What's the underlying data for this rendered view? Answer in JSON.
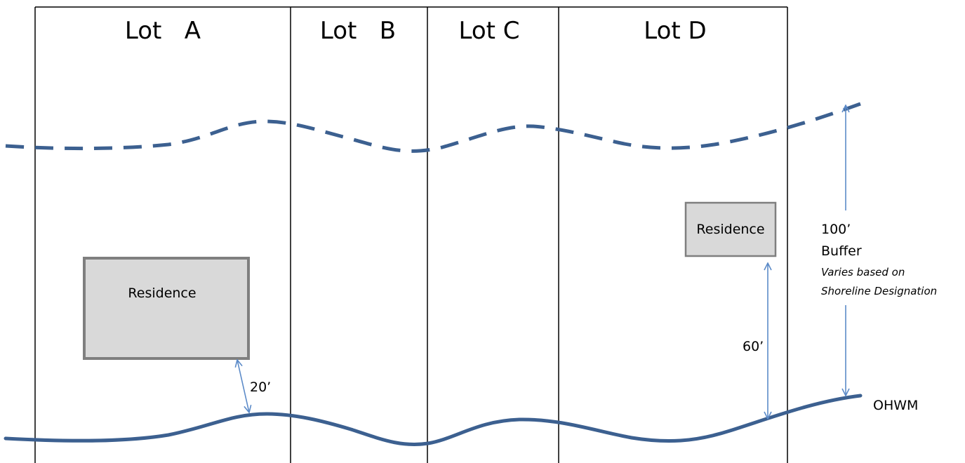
{
  "lots": [
    {
      "label": "Lot   A"
    },
    {
      "label": "Lot   B"
    },
    {
      "label": "Lot C"
    },
    {
      "label": "Lot D"
    }
  ],
  "residences": [
    {
      "label": "Residence"
    },
    {
      "label": "Residence"
    }
  ],
  "dimensions": {
    "setback_lot_a": "20’",
    "setback_lot_d": "60’",
    "buffer_distance": "100’",
    "buffer_label": "Buffer",
    "buffer_note_line1": "Varies based on",
    "buffer_note_line2": "Shoreline Designation"
  },
  "shoreline_label": "OHWM",
  "colors": {
    "line_blue": "#3c6090",
    "arrow_blue": "#5b8ac8",
    "residence_fill": "#d9d9d9",
    "residence_stroke": "#7f7f7f",
    "lot_line": "#000000"
  }
}
